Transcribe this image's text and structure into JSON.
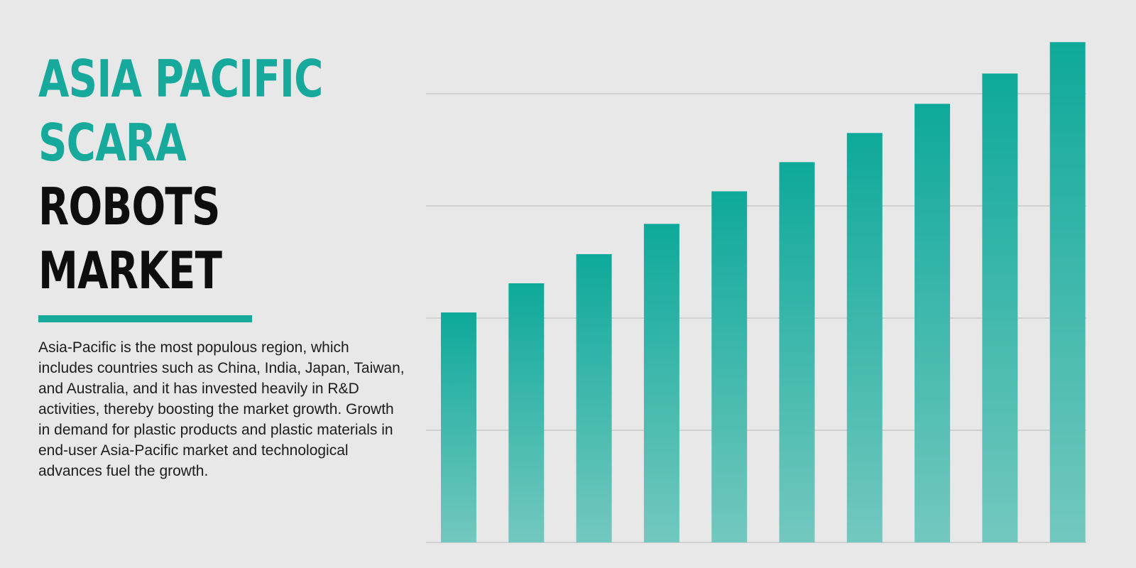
{
  "header": {
    "title_lines": [
      {
        "text": "ASIA PACIFIC",
        "color": "#17aa9c"
      },
      {
        "text": "SCARA",
        "color": "#17aa9c"
      },
      {
        "text": "ROBOTS",
        "color": "#0e0e0e"
      },
      {
        "text": "MARKET",
        "color": "#0e0e0e"
      }
    ]
  },
  "description": "Asia-Pacific is the most populous region, which includes countries such as China, India, Japan, Taiwan, and Australia, and it has invested heavily in R&D activities, thereby boosting the market growth. Growth in demand for plastic products and plastic materials in end-user Asia-Pacific market and technological advances fuel the growth.",
  "colors": {
    "accent": "#17aa9c",
    "bar_top": "#0ea99a",
    "bar_bottom": "#73c8bf",
    "gridline": "#cfd0d0",
    "background": "#e8e8e8"
  },
  "chart_data": {
    "type": "bar",
    "categories": [
      "",
      "",
      "",
      "",
      "",
      "",
      "",
      "",
      "",
      ""
    ],
    "values": [
      2.05,
      2.31,
      2.57,
      2.84,
      3.13,
      3.39,
      3.65,
      3.91,
      4.18,
      4.46
    ],
    "ylim": [
      0,
      4.4
    ],
    "y_gridlines": [
      0,
      1,
      2,
      3,
      4
    ],
    "grid": true,
    "legend": "none",
    "title": "",
    "xlabel": "",
    "ylabel": ""
  }
}
